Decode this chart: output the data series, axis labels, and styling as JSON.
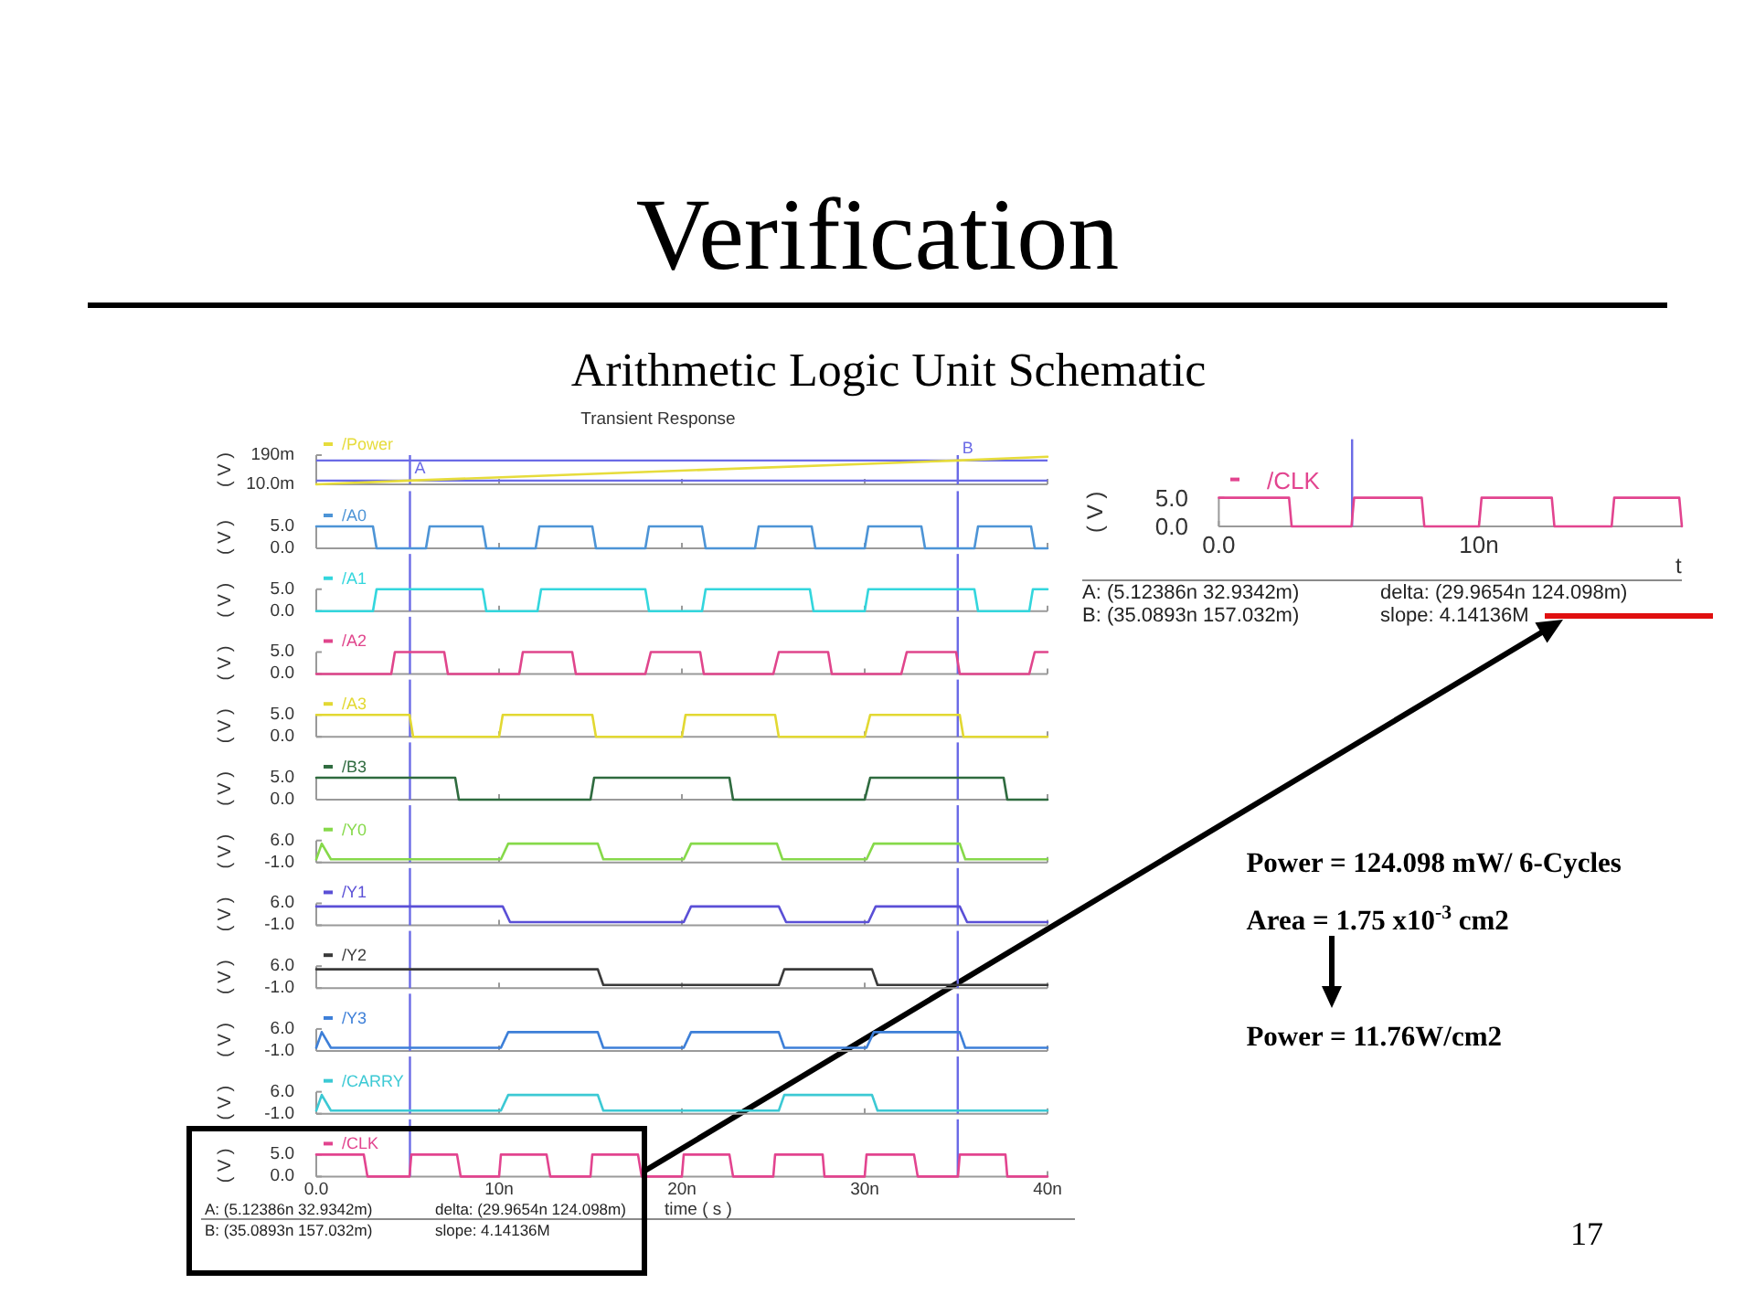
{
  "chart_data": [
    {
      "type": "other",
      "title": "Verification",
      "subtitle": "Arithmetic Logic Unit Schematic",
      "annotations": [
        "Power = 124.098 mW/ 6-Cycles",
        "Area = 1.75 x10$^{-3}$ cm2",
        "Power = 11.76W/cm2",
        "17"
      ]
    },
    {
      "type": "line",
      "title": "Transient Response",
      "ylabel": "( V )",
      "x": [
        0,
        5.12386,
        35.0893,
        40
      ],
      "series": [
        {
          "name": "/Power",
          "color": "#e6dc3c",
          "values": [
            10,
            32.9342,
            157.032,
            180
          ]
        }
      ],
      "xlim": [
        0,
        40
      ],
      "xticks": [
        0,
        10,
        20,
        30,
        40
      ],
      "ylim": [
        10,
        190
      ],
      "yticks": [
        {
          "value": 190,
          "label": "190m"
        },
        {
          "value": 10,
          "label": "10.0m"
        }
      ],
      "tick_labels": "y",
      "legend": "top left",
      "ref_lines": [
        {
          "axis": "x",
          "value": 5.12386,
          "label": "A",
          "color": "#6a6ae6"
        },
        {
          "axis": "x",
          "value": 35.0893,
          "label": "B",
          "color": "#6a6ae6"
        },
        {
          "axis": "y",
          "value": 32.9342,
          "color": "#6a6ae6"
        },
        {
          "axis": "y",
          "value": 157.032,
          "color": "#6a6ae6"
        }
      ]
    },
    {
      "type": "line",
      "ylabel": "( V )",
      "x": [
        0,
        3.1,
        3.3,
        6.0,
        6.2,
        9.1,
        9.3,
        12.0,
        12.2,
        15.1,
        15.3,
        18.0,
        18.2,
        21.1,
        21.3,
        24.0,
        24.2,
        27.1,
        27.3,
        30.0,
        30.2,
        33.1,
        33.3,
        36.0,
        36.2,
        39.1,
        39.3,
        40
      ],
      "series": [
        {
          "name": "/A0",
          "color": "#4d94d6",
          "values": [
            5,
            5,
            0,
            0,
            5,
            5,
            0,
            0,
            5,
            5,
            0,
            0,
            5,
            5,
            0,
            0,
            5,
            5,
            0,
            0,
            5,
            5,
            0,
            0,
            5,
            5,
            0,
            0
          ]
        }
      ],
      "xlim": [
        0,
        40
      ],
      "xticks": [
        0,
        10,
        20,
        30,
        40
      ],
      "ylim": [
        0,
        5
      ],
      "yticks": [
        {
          "value": 5,
          "label": "5.0"
        },
        {
          "value": 0,
          "label": "0.0"
        }
      ],
      "tick_labels": "y",
      "legend": "top left",
      "ref_lines": [
        {
          "axis": "x",
          "value": 5.12386,
          "color": "#6a6ae6"
        },
        {
          "axis": "x",
          "value": 35.0893,
          "color": "#6a6ae6"
        }
      ]
    },
    {
      "type": "line",
      "ylabel": "( V )",
      "x": [
        0,
        3.1,
        3.3,
        9.1,
        9.3,
        12.1,
        12.3,
        18.0,
        18.2,
        21.1,
        21.3,
        27.0,
        27.2,
        30.0,
        30.2,
        36.0,
        36.2,
        39.0,
        39.2,
        40
      ],
      "series": [
        {
          "name": "/A1",
          "color": "#33d6dd",
          "values": [
            0,
            0,
            5,
            5,
            0,
            0,
            5,
            5,
            0,
            0,
            5,
            5,
            0,
            0,
            5,
            5,
            0,
            0,
            5,
            5
          ]
        }
      ],
      "xlim": [
        0,
        40
      ],
      "xticks": [
        0,
        10,
        20,
        30,
        40
      ],
      "ylim": [
        0,
        5
      ],
      "yticks": [
        {
          "value": 5,
          "label": "5.0"
        },
        {
          "value": 0,
          "label": "0.0"
        }
      ],
      "tick_labels": "y",
      "legend": "top left",
      "ref_lines": [
        {
          "axis": "x",
          "value": 5.12386,
          "color": "#6a6ae6"
        },
        {
          "axis": "x",
          "value": 35.0893,
          "color": "#6a6ae6"
        }
      ]
    },
    {
      "type": "line",
      "ylabel": "( V )",
      "x": [
        0,
        4.1,
        4.3,
        7.0,
        7.2,
        11.1,
        11.3,
        14.0,
        14.2,
        18.0,
        18.3,
        21.0,
        21.2,
        25.0,
        25.3,
        28.0,
        28.2,
        32.0,
        32.3,
        35.0,
        35.2,
        39.0,
        39.3,
        40
      ],
      "series": [
        {
          "name": "/A2",
          "color": "#e0458c",
          "values": [
            0,
            0,
            5,
            5,
            0,
            0,
            5,
            5,
            0,
            0,
            5,
            5,
            0,
            0,
            5,
            5,
            0,
            0,
            5,
            5,
            0,
            0,
            5,
            5
          ]
        }
      ],
      "xlim": [
        0,
        40
      ],
      "xticks": [
        0,
        10,
        20,
        30,
        40
      ],
      "ylim": [
        0,
        5
      ],
      "yticks": [
        {
          "value": 5,
          "label": "5.0"
        },
        {
          "value": 0,
          "label": "0.0"
        }
      ],
      "tick_labels": "y",
      "legend": "top left",
      "ref_lines": [
        {
          "axis": "x",
          "value": 5.12386,
          "color": "#6a6ae6"
        },
        {
          "axis": "x",
          "value": 35.0893,
          "color": "#6a6ae6"
        }
      ]
    },
    {
      "type": "line",
      "ylabel": "( V )",
      "x": [
        0,
        5.1,
        5.3,
        10.0,
        10.2,
        15.1,
        15.3,
        20.0,
        20.2,
        25.1,
        25.3,
        30.0,
        30.3,
        35.2,
        35.4,
        40
      ],
      "series": [
        {
          "name": "/A3",
          "color": "#e2d832",
          "values": [
            5,
            5,
            0,
            0,
            5,
            5,
            0,
            0,
            5,
            5,
            0,
            0,
            5,
            5,
            0,
            0
          ]
        }
      ],
      "xlim": [
        0,
        40
      ],
      "xticks": [
        0,
        10,
        20,
        30,
        40
      ],
      "ylim": [
        0,
        5
      ],
      "yticks": [
        {
          "value": 5,
          "label": "5.0"
        },
        {
          "value": 0,
          "label": "0.0"
        }
      ],
      "tick_labels": "y",
      "legend": "top left",
      "ref_lines": [
        {
          "axis": "x",
          "value": 5.12386,
          "color": "#6a6ae6"
        },
        {
          "axis": "x",
          "value": 35.0893,
          "color": "#6a6ae6"
        }
      ]
    },
    {
      "type": "line",
      "ylabel": "( V )",
      "x": [
        0,
        7.6,
        7.8,
        15.0,
        15.2,
        22.6,
        22.8,
        30.0,
        30.3,
        37.6,
        37.8,
        40
      ],
      "series": [
        {
          "name": "/B3",
          "color": "#2f6b3f",
          "values": [
            5,
            5,
            0,
            0,
            5,
            5,
            0,
            0,
            5,
            5,
            0,
            0
          ]
        }
      ],
      "xlim": [
        0,
        40
      ],
      "xticks": [
        0,
        10,
        20,
        30,
        40
      ],
      "ylim": [
        0,
        5
      ],
      "yticks": [
        {
          "value": 5,
          "label": "5.0"
        },
        {
          "value": 0,
          "label": "0.0"
        }
      ],
      "tick_labels": "y",
      "legend": "top left",
      "ref_lines": [
        {
          "axis": "x",
          "value": 5.12386,
          "color": "#6a6ae6"
        },
        {
          "axis": "x",
          "value": 35.0893,
          "color": "#6a6ae6"
        }
      ]
    },
    {
      "type": "line",
      "ylabel": "( V )",
      "x": [
        0,
        0.3,
        0.8,
        10.1,
        10.5,
        15.4,
        15.7,
        20.1,
        20.5,
        25.2,
        25.5,
        30.1,
        30.5,
        35.2,
        35.5,
        40
      ],
      "series": [
        {
          "name": "/Y0",
          "color": "#86d94a",
          "values": [
            0,
            5,
            0,
            0,
            5,
            5,
            0,
            0,
            5,
            5,
            0,
            0,
            5,
            5,
            0,
            0
          ]
        }
      ],
      "xlim": [
        0,
        40
      ],
      "xticks": [
        0,
        10,
        20,
        30,
        40
      ],
      "ylim": [
        -1,
        6
      ],
      "yticks": [
        {
          "value": 6,
          "label": "6.0"
        },
        {
          "value": -1,
          "label": "-1.0"
        }
      ],
      "tick_labels": "y",
      "legend": "top left",
      "ref_lines": [
        {
          "axis": "x",
          "value": 5.12386,
          "color": "#6a6ae6"
        },
        {
          "axis": "x",
          "value": 35.0893,
          "color": "#6a6ae6"
        }
      ]
    },
    {
      "type": "line",
      "ylabel": "( V )",
      "x": [
        0,
        10.2,
        10.6,
        20.1,
        20.5,
        25.3,
        25.7,
        30.2,
        30.6,
        35.2,
        35.6,
        40
      ],
      "series": [
        {
          "name": "/Y1",
          "color": "#5a4fd6",
          "values": [
            5,
            5,
            0,
            0,
            5,
            5,
            0,
            0,
            5,
            5,
            0,
            0
          ]
        }
      ],
      "xlim": [
        0,
        40
      ],
      "xticks": [
        0,
        10,
        20,
        30,
        40
      ],
      "ylim": [
        -1,
        6
      ],
      "yticks": [
        {
          "value": 6,
          "label": "6.0"
        },
        {
          "value": -1,
          "label": "-1.0"
        }
      ],
      "tick_labels": "y",
      "legend": "top left",
      "ref_lines": [
        {
          "axis": "x",
          "value": 5.12386,
          "color": "#6a6ae6"
        },
        {
          "axis": "x",
          "value": 35.0893,
          "color": "#6a6ae6"
        }
      ]
    },
    {
      "type": "line",
      "ylabel": "( V )",
      "x": [
        0,
        15.4,
        15.7,
        25.3,
        25.6,
        30.4,
        30.7,
        40
      ],
      "series": [
        {
          "name": "/Y2",
          "color": "#3a3a3a",
          "values": [
            5,
            5,
            0,
            0,
            5,
            5,
            0,
            0
          ]
        }
      ],
      "xlim": [
        0,
        40
      ],
      "xticks": [
        0,
        10,
        20,
        30,
        40
      ],
      "ylim": [
        -1,
        6
      ],
      "yticks": [
        {
          "value": 6,
          "label": "6.0"
        },
        {
          "value": -1,
          "label": "-1.0"
        }
      ],
      "tick_labels": "y",
      "legend": "top left",
      "ref_lines": [
        {
          "axis": "x",
          "value": 5.12386,
          "color": "#6a6ae6"
        },
        {
          "axis": "x",
          "value": 35.0893,
          "color": "#6a6ae6"
        }
      ]
    },
    {
      "type": "line",
      "ylabel": "( V )",
      "x": [
        0,
        0.3,
        0.8,
        10.1,
        10.5,
        15.4,
        15.7,
        20.1,
        20.5,
        25.3,
        25.6,
        30.1,
        30.5,
        35.2,
        35.5,
        40
      ],
      "series": [
        {
          "name": "/Y3",
          "color": "#3d7fd8",
          "values": [
            0,
            5,
            0,
            0,
            5,
            5,
            0,
            0,
            5,
            5,
            0,
            0,
            5,
            5,
            0,
            0
          ]
        }
      ],
      "xlim": [
        0,
        40
      ],
      "xticks": [
        0,
        10,
        20,
        30,
        40
      ],
      "ylim": [
        -1,
        6
      ],
      "yticks": [
        {
          "value": 6,
          "label": "6.0"
        },
        {
          "value": -1,
          "label": "-1.0"
        }
      ],
      "tick_labels": "y",
      "legend": "top left",
      "ref_lines": [
        {
          "axis": "x",
          "value": 5.12386,
          "color": "#6a6ae6"
        },
        {
          "axis": "x",
          "value": 35.0893,
          "color": "#6a6ae6"
        }
      ]
    },
    {
      "type": "line",
      "ylabel": "( V )",
      "x": [
        0,
        0.3,
        0.8,
        10.1,
        10.5,
        15.4,
        15.7,
        25.3,
        25.6,
        30.4,
        30.7,
        40
      ],
      "series": [
        {
          "name": "/CARRY",
          "color": "#3cc9d4",
          "values": [
            0,
            5,
            0,
            0,
            5,
            5,
            0,
            0,
            5,
            5,
            0,
            0
          ]
        }
      ],
      "xlim": [
        0,
        40
      ],
      "xticks": [
        0,
        10,
        20,
        30,
        40
      ],
      "ylim": [
        -1,
        6
      ],
      "yticks": [
        {
          "value": 6,
          "label": "6.0"
        },
        {
          "value": -1,
          "label": "-1.0"
        }
      ],
      "tick_labels": "y",
      "legend": "top left",
      "ref_lines": [
        {
          "axis": "x",
          "value": 5.12386,
          "color": "#6a6ae6"
        },
        {
          "axis": "x",
          "value": 35.0893,
          "color": "#6a6ae6"
        }
      ]
    },
    {
      "type": "line",
      "ylabel": "( V )",
      "xlabel": "time ( s )",
      "x": [
        0,
        2.6,
        2.8,
        5.1,
        5.2,
        7.7,
        7.9,
        10.0,
        10.1,
        12.6,
        12.8,
        15.0,
        15.1,
        17.6,
        17.8,
        20.0,
        20.1,
        22.6,
        22.8,
        25.0,
        25.1,
        27.7,
        27.8,
        30.0,
        30.1,
        32.7,
        32.9,
        35.1,
        35.2,
        37.7,
        37.8,
        40
      ],
      "series": [
        {
          "name": "/CLK",
          "color": "#e2448f",
          "values": [
            5,
            5,
            0,
            0,
            5,
            5,
            0,
            0,
            5,
            5,
            0,
            0,
            5,
            5,
            0,
            0,
            5,
            5,
            0,
            0,
            5,
            5,
            0,
            0,
            5,
            5,
            0,
            0,
            5,
            5,
            0,
            0
          ]
        }
      ],
      "xlim": [
        0,
        40
      ],
      "xticks": [
        {
          "value": 0,
          "label": "0.0"
        },
        {
          "value": 10,
          "label": "10n"
        },
        {
          "value": 20,
          "label": "20n"
        },
        {
          "value": 30,
          "label": "30n"
        },
        {
          "value": 40,
          "label": "40n"
        }
      ],
      "ylim": [
        0,
        5
      ],
      "yticks": [
        {
          "value": 5,
          "label": "5.0"
        },
        {
          "value": 0,
          "label": "0.0"
        }
      ],
      "legend": "top left",
      "ref_lines": [
        {
          "axis": "x",
          "value": 5.12386,
          "color": "#6a6ae6"
        },
        {
          "axis": "x",
          "value": 35.0893,
          "color": "#6a6ae6"
        }
      ],
      "annotations": [
        "A: (5.12386n 32.9342m)",
        "delta: (29.9654n 124.098m)",
        "B: (35.0893n 157.032m)",
        "slope: 4.14136M"
      ]
    },
    {
      "type": "line",
      "ylabel": "( V )",
      "xlabel": "t",
      "x": [
        0,
        2.7,
        2.8,
        5.1,
        5.2,
        7.8,
        7.9,
        10.0,
        10.1,
        12.8,
        12.9,
        15.1,
        15.2,
        17.7,
        17.8
      ],
      "series": [
        {
          "name": "/CLK",
          "color": "#e2448f",
          "values": [
            5,
            5,
            0,
            0,
            5,
            5,
            0,
            0,
            5,
            5,
            0,
            0,
            5,
            5,
            0
          ]
        }
      ],
      "xlim": [
        0,
        17.8
      ],
      "xticks": [
        {
          "value": 0,
          "label": "0.0"
        },
        {
          "value": 10,
          "label": "10n"
        }
      ],
      "ylim": [
        0,
        5
      ],
      "yticks": [
        {
          "value": 5,
          "label": "5.0"
        },
        {
          "value": 0,
          "label": "0.0"
        }
      ],
      "legend": "top left",
      "ref_lines": [
        {
          "axis": "x",
          "value": 5.12386,
          "color": "#6a6ae6"
        }
      ],
      "annotations": [
        "A: (5.12386n 32.9342m)",
        "delta: (29.9654n 124.098m)",
        "B: (35.0893n 157.032m)",
        "slope: 4.14136M"
      ]
    }
  ]
}
